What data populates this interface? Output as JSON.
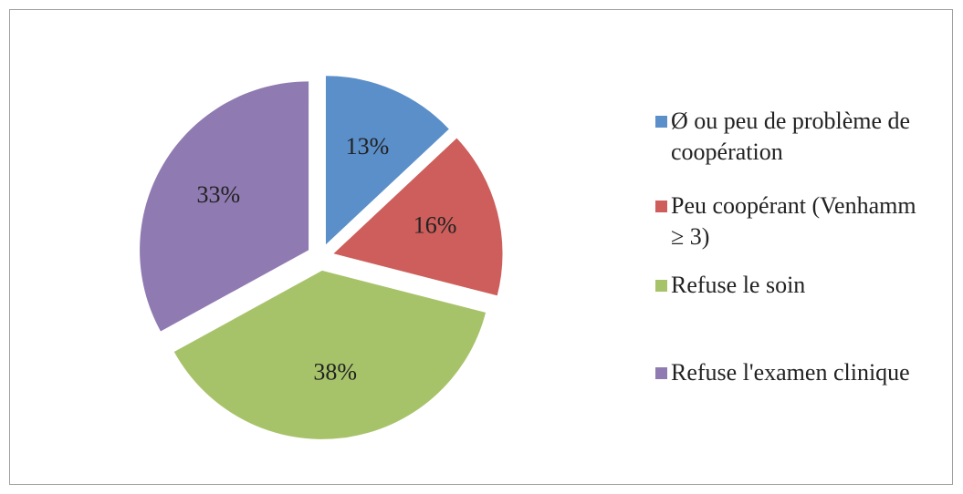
{
  "chart_data": {
    "type": "pie",
    "categories": [
      "Ø ou peu de problème de coopération",
      "Peu coopérant (Venhamm ≥ 3)",
      "Refuse le soin",
      "Refuse l'examen clinique"
    ],
    "values": [
      13,
      16,
      38,
      33
    ],
    "value_labels": [
      "13%",
      "16%",
      "38%",
      "33%"
    ],
    "colors": [
      "#5b8fc9",
      "#cd5e5b",
      "#a7c36a",
      "#8f7ab1"
    ],
    "legend": "right"
  }
}
